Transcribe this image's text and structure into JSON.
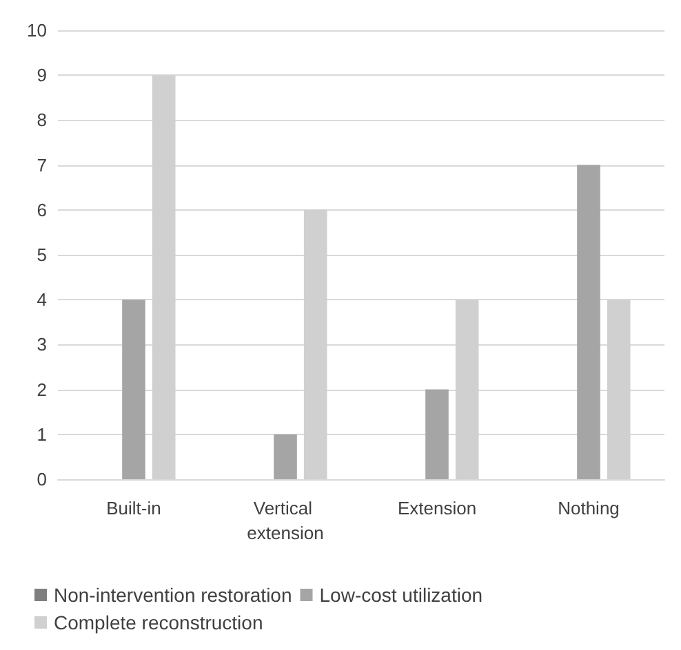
{
  "chart_data": {
    "type": "bar",
    "categories": [
      "Built-in",
      "Vertical extension",
      "Extension",
      "Nothing"
    ],
    "series": [
      {
        "name": "Non-intervention restoration",
        "color": "#7f7f7f",
        "values": [
          0,
          0,
          0,
          0
        ]
      },
      {
        "name": "Low-cost utilization",
        "color": "#a5a5a5",
        "values": [
          4,
          1,
          2,
          7
        ]
      },
      {
        "name": "Complete reconstruction",
        "color": "#d0d0d0",
        "values": [
          9,
          6,
          4,
          4
        ]
      }
    ],
    "ylim": [
      0,
      10
    ],
    "yticks": [
      0,
      1,
      2,
      3,
      4,
      5,
      6,
      7,
      8,
      9,
      10
    ],
    "grid": "y",
    "legend": "bottom"
  }
}
